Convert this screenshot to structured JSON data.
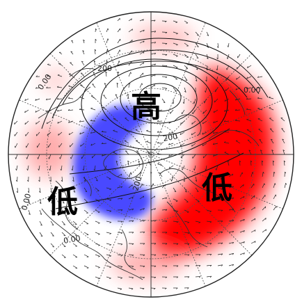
{
  "map": {
    "projection": "north-polar-stereographic",
    "region_labels": {
      "high": "高",
      "low_west": "低",
      "low_east": "低"
    },
    "contour_labels": [
      {
        "text": "0.00"
      },
      {
        "text": "200"
      },
      {
        "text": "0.00"
      },
      {
        "text": "200"
      },
      {
        "text": "200"
      },
      {
        "text": "0.00"
      },
      {
        "text": "0.00"
      }
    ],
    "colors": {
      "positive_anomaly": "#ff0000",
      "negative_anomaly": "#4444ff",
      "contour": "#111111",
      "coastline": "#333333",
      "grid": "#555555"
    }
  }
}
